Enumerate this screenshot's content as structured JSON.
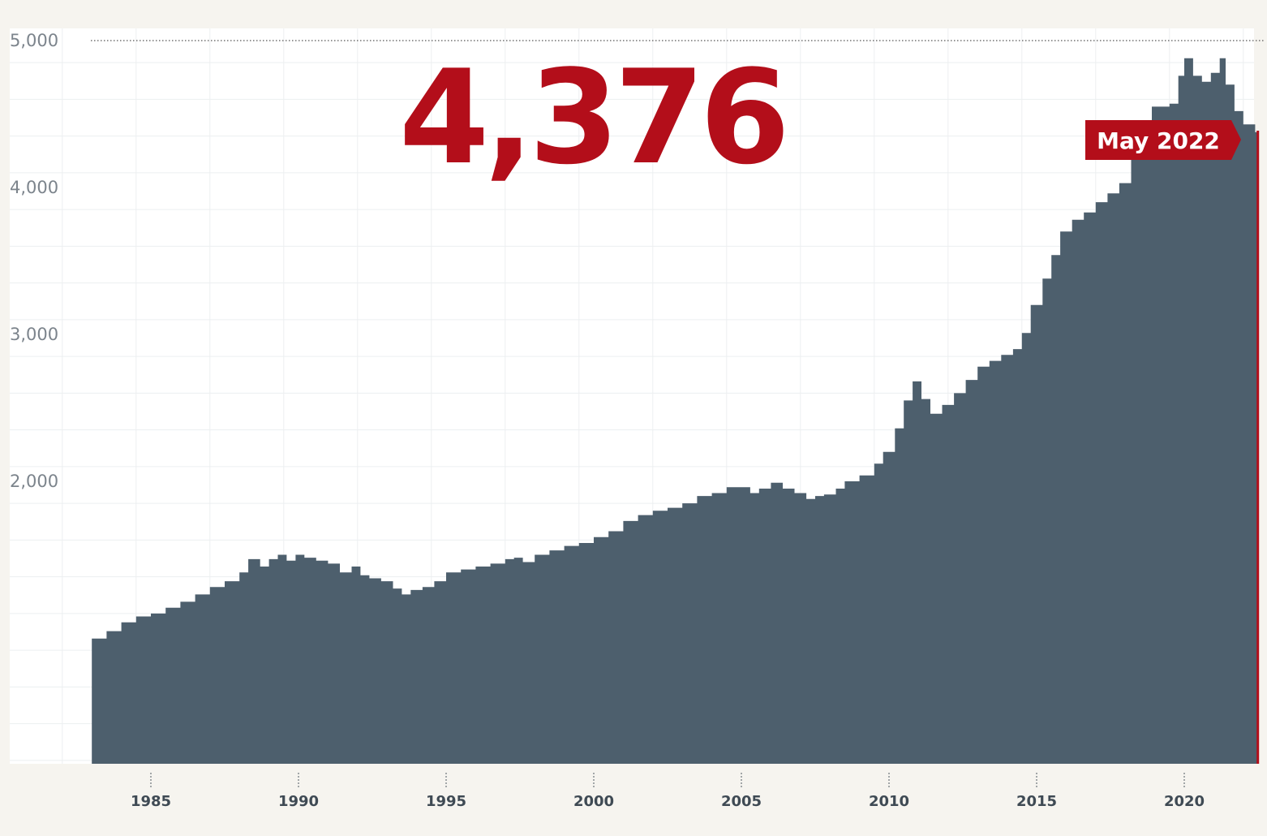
{
  "headline_value": "4,376",
  "current_label": "May 2022",
  "colors": {
    "background": "#f6f4ef",
    "plot_background": "#ffffff",
    "area_fill": "#4d5f6d",
    "accent": "#b30e1a",
    "grid": "#eceff1"
  },
  "chart_data": {
    "type": "area",
    "title": "",
    "xlabel": "",
    "ylabel": "",
    "xlim": [
      1982.2,
      2023.0
    ],
    "ylim": [
      100,
      5000
    ],
    "grid": true,
    "y_ticks": [
      2000,
      3000,
      4000,
      5000
    ],
    "y_tick_labels": [
      "2,000",
      "3,000",
      "4,000",
      "5,000"
    ],
    "x_ticks": [
      1985,
      1990,
      1995,
      2000,
      2005,
      2010,
      2015,
      2020
    ],
    "x_tick_labels": [
      "1985",
      "1990",
      "1995",
      "2000",
      "2005",
      "2010",
      "2015",
      "2020"
    ],
    "series": [
      {
        "style": "step",
        "x": [
          1983.0,
          1983.5,
          1984.0,
          1984.5,
          1985.0,
          1985.5,
          1986.0,
          1986.5,
          1987.0,
          1987.5,
          1988.0,
          1988.3,
          1988.7,
          1989.0,
          1989.3,
          1989.6,
          1989.9,
          1990.2,
          1990.6,
          1991.0,
          1991.4,
          1991.8,
          1992.1,
          1992.4,
          1992.8,
          1993.2,
          1993.5,
          1993.8,
          1994.2,
          1994.6,
          1995.0,
          1995.5,
          1996.0,
          1996.5,
          1997.0,
          1997.3,
          1997.6,
          1998.0,
          1998.5,
          1999.0,
          1999.5,
          2000.0,
          2000.5,
          2001.0,
          2001.5,
          2002.0,
          2002.5,
          2003.0,
          2003.5,
          2004.0,
          2004.5,
          2005.0,
          2005.3,
          2005.6,
          2006.0,
          2006.4,
          2006.8,
          2007.2,
          2007.5,
          2007.8,
          2008.2,
          2008.5,
          2009.0,
          2009.5,
          2009.8,
          2010.2,
          2010.5,
          2010.8,
          2011.1,
          2011.4,
          2011.8,
          2012.2,
          2012.6,
          2013.0,
          2013.4,
          2013.8,
          2014.2,
          2014.5,
          2014.8,
          2015.2,
          2015.5,
          2015.8,
          2016.2,
          2016.6,
          2017.0,
          2017.4,
          2017.8,
          2018.2,
          2018.6,
          2018.9,
          2019.2,
          2019.5,
          2019.8,
          2020.0,
          2020.3,
          2020.6,
          2020.9,
          2021.2,
          2021.4,
          2021.7,
          2022.0,
          2022.4
        ],
        "y": [
          930,
          980,
          1040,
          1080,
          1100,
          1140,
          1180,
          1230,
          1280,
          1320,
          1380,
          1470,
          1420,
          1470,
          1500,
          1460,
          1500,
          1480,
          1460,
          1440,
          1380,
          1420,
          1360,
          1340,
          1320,
          1270,
          1230,
          1260,
          1280,
          1320,
          1380,
          1400,
          1420,
          1440,
          1470,
          1480,
          1450,
          1500,
          1530,
          1560,
          1580,
          1620,
          1660,
          1730,
          1770,
          1800,
          1820,
          1850,
          1900,
          1920,
          1960,
          1960,
          1920,
          1950,
          1990,
          1950,
          1920,
          1880,
          1900,
          1910,
          1950,
          2000,
          2040,
          2120,
          2200,
          2360,
          2550,
          2680,
          2560,
          2460,
          2520,
          2600,
          2690,
          2780,
          2820,
          2860,
          2900,
          3010,
          3200,
          3380,
          3540,
          3700,
          3780,
          3830,
          3900,
          3960,
          4030,
          4200,
          4400,
          4550,
          4550,
          4570,
          4760,
          4880,
          4760,
          4720,
          4780,
          4880,
          4700,
          4520,
          4430,
          4376
        ]
      }
    ]
  }
}
